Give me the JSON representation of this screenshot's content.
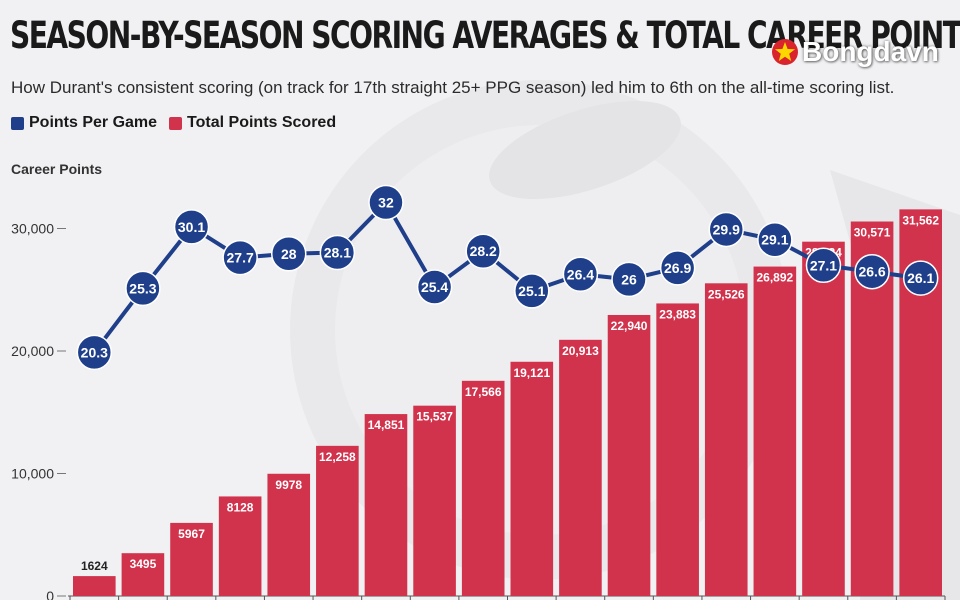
{
  "header": {
    "title": "SEASON-BY-SEASON SCORING AVERAGES & TOTAL CAREER POINTS",
    "subtitle": "How Durant's consistent scoring (on track for 17th straight 25+ PPG season) led him to 6th on the all-time scoring list.",
    "logo_text": "Bongdavn"
  },
  "legend": [
    {
      "label": "Points Per Game",
      "color": "#1f3f8a"
    },
    {
      "label": "Total Points Scored",
      "color": "#d1334d"
    }
  ],
  "colors": {
    "ppg": "#1f3f8a",
    "total": "#d1334d",
    "axis_text": "#333333"
  },
  "chart_data": {
    "type": "bar",
    "ylabel": "Career Points",
    "ylim": [
      0,
      32000
    ],
    "yticks": [
      0,
      10000,
      20000,
      30000
    ],
    "ytick_labels": [
      "0",
      "10,000",
      "20,000",
      "30,000"
    ],
    "ppg_scale": [
      17.75,
      32.2
    ],
    "grid": false,
    "legend_position": "top-left",
    "series": [
      {
        "name": "Total Points Scored",
        "type": "bar",
        "values": [
          1624,
          3495,
          5967,
          8128,
          9978,
          12258,
          14851,
          15537,
          17566,
          19121,
          20913,
          22940,
          23883,
          25526,
          26892,
          28924,
          30571,
          31562
        ],
        "labels": [
          "1624",
          "3495",
          "5967",
          "8128",
          "9978",
          "12,258",
          "14,851",
          "15,537",
          "17,566",
          "19,121",
          "20,913",
          "22,940",
          "23,883",
          "25,526",
          "26,892",
          "28,924",
          "30,571",
          "31,562"
        ]
      },
      {
        "name": "Points Per Game",
        "type": "line",
        "values": [
          20.3,
          25.3,
          30.1,
          27.7,
          28,
          28.1,
          32,
          25.4,
          28.2,
          25.1,
          26.4,
          26,
          26.9,
          29.9,
          29.1,
          27.1,
          26.6,
          26.1
        ],
        "labels": [
          "20.3",
          "25.3",
          "30.1",
          "27.7",
          "28",
          "28.1",
          "32",
          "25.4",
          "28.2",
          "25.1",
          "26.4",
          "26",
          "26.9",
          "29.9",
          "29.1",
          "27.1",
          "26.6",
          "26.1"
        ]
      }
    ]
  }
}
